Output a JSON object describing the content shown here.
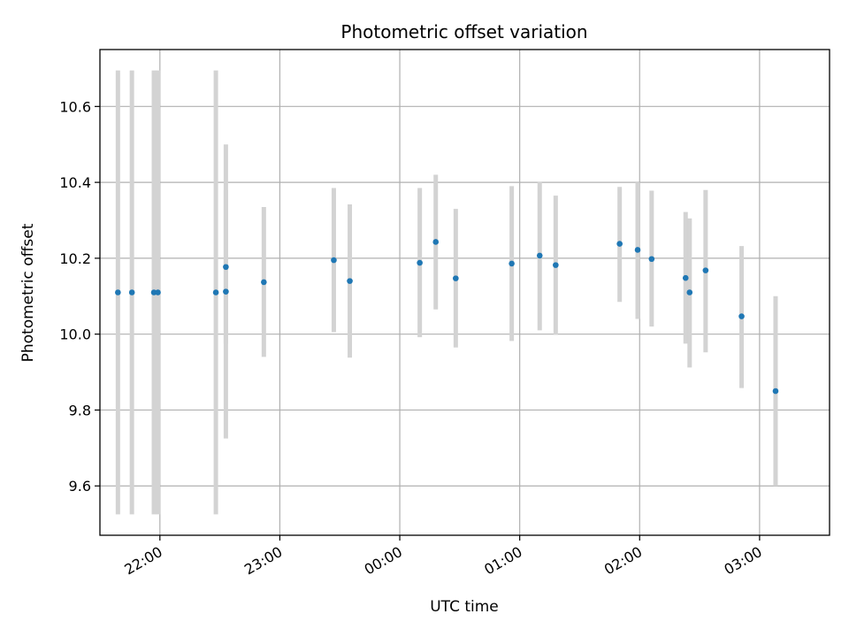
{
  "chart_data": {
    "type": "scatter",
    "title": "Photometric offset variation",
    "xlabel": "UTC time",
    "ylabel": "Photometric offset",
    "x_unit": "hours",
    "xlim": [
      "21:30",
      "03:35"
    ],
    "ylim": [
      9.47,
      10.75
    ],
    "xticks": [
      "22:00",
      "23:00",
      "00:00",
      "01:00",
      "02:00",
      "03:00"
    ],
    "yticks": [
      9.6,
      9.8,
      10.0,
      10.2,
      10.4,
      10.6
    ],
    "grid": true,
    "legend": "none",
    "marker_color": "#1f77b4",
    "errorbar_color": "#d3d3d3",
    "points": [
      {
        "x": "21:39",
        "y": 10.11,
        "yerr_low": 9.525,
        "yerr_high": 10.695
      },
      {
        "x": "21:46",
        "y": 10.11,
        "yerr_low": 9.525,
        "yerr_high": 10.695
      },
      {
        "x": "21:57",
        "y": 10.11,
        "yerr_low": 9.525,
        "yerr_high": 10.695
      },
      {
        "x": "21:59",
        "y": 10.11,
        "yerr_low": 9.525,
        "yerr_high": 10.695
      },
      {
        "x": "22:28",
        "y": 10.11,
        "yerr_low": 9.525,
        "yerr_high": 10.695
      },
      {
        "x": "22:33",
        "y": 10.112,
        "yerr_low": 9.725,
        "yerr_high": 10.5
      },
      {
        "x": "22:33",
        "y": 10.177,
        "yerr_low": 9.975,
        "yerr_high": 10.38
      },
      {
        "x": "22:52",
        "y": 10.137,
        "yerr_low": 9.94,
        "yerr_high": 10.335
      },
      {
        "x": "23:27",
        "y": 10.195,
        "yerr_low": 10.005,
        "yerr_high": 10.385
      },
      {
        "x": "23:35",
        "y": 10.14,
        "yerr_low": 9.938,
        "yerr_high": 10.342
      },
      {
        "x": "00:10",
        "y": 10.188,
        "yerr_low": 9.992,
        "yerr_high": 10.385
      },
      {
        "x": "00:18",
        "y": 10.243,
        "yerr_low": 10.065,
        "yerr_high": 10.42
      },
      {
        "x": "00:28",
        "y": 10.147,
        "yerr_low": 9.965,
        "yerr_high": 10.33
      },
      {
        "x": "00:56",
        "y": 10.186,
        "yerr_low": 9.982,
        "yerr_high": 10.39
      },
      {
        "x": "01:10",
        "y": 10.207,
        "yerr_low": 10.01,
        "yerr_high": 10.402
      },
      {
        "x": "01:18",
        "y": 10.182,
        "yerr_low": 9.998,
        "yerr_high": 10.365
      },
      {
        "x": "01:50",
        "y": 10.238,
        "yerr_low": 10.085,
        "yerr_high": 10.388
      },
      {
        "x": "01:59",
        "y": 10.222,
        "yerr_low": 10.04,
        "yerr_high": 10.4
      },
      {
        "x": "02:06",
        "y": 10.198,
        "yerr_low": 10.02,
        "yerr_high": 10.378
      },
      {
        "x": "02:23",
        "y": 10.148,
        "yerr_low": 9.975,
        "yerr_high": 10.322
      },
      {
        "x": "02:25",
        "y": 10.11,
        "yerr_low": 9.912,
        "yerr_high": 10.305
      },
      {
        "x": "02:33",
        "y": 10.168,
        "yerr_low": 9.952,
        "yerr_high": 10.38
      },
      {
        "x": "02:51",
        "y": 10.047,
        "yerr_low": 9.858,
        "yerr_high": 10.232
      },
      {
        "x": "03:08",
        "y": 9.85,
        "yerr_low": 9.6,
        "yerr_high": 10.1
      }
    ]
  }
}
